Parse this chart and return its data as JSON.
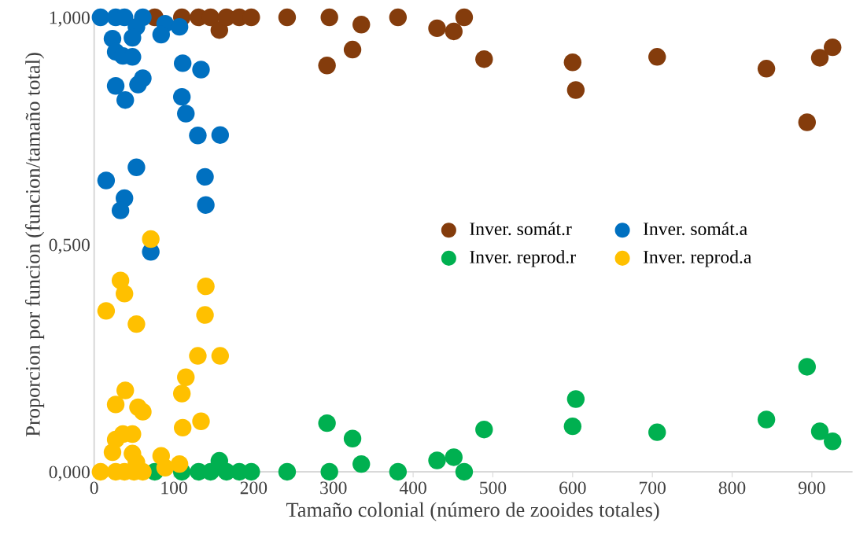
{
  "chart_data": {
    "type": "scatter",
    "xlabel": "Tamaño colonial (número de zooides totales)",
    "ylabel": "Proporcion por funcion (funcion/tamaño total)",
    "xlim": [
      0,
      950
    ],
    "xticks": [
      0,
      100,
      200,
      300,
      400,
      500,
      600,
      700,
      800,
      900
    ],
    "ylim": [
      0,
      1
    ],
    "yticks": [
      {
        "value": 0,
        "label": "0,000"
      },
      {
        "value": 0.5,
        "label": "0,500"
      },
      {
        "value": 1,
        "label": "1,000"
      }
    ],
    "grid": false,
    "legend": "center right",
    "marker": "circle",
    "series": [
      {
        "name": "Inver. somát.r",
        "color": "#843c0c",
        "x": [
          76,
          110,
          131,
          146,
          157,
          166,
          182,
          197,
          242,
          292,
          295,
          324,
          335,
          381,
          430,
          451,
          464,
          489,
          600,
          604,
          706,
          843,
          894,
          910,
          926
        ],
        "values": [
          1.0,
          1.0,
          1.0,
          1.0,
          0.972,
          1.0,
          1.0,
          1.0,
          1.0,
          0.894,
          1.0,
          0.929,
          0.984,
          1.0,
          0.976,
          0.969,
          1.0,
          0.908,
          0.901,
          0.84,
          0.913,
          0.887,
          0.769,
          0.911,
          0.934
        ]
      },
      {
        "name": "Inver. somát.a",
        "color": "#0070c0",
        "x": [
          8,
          27,
          38,
          50,
          61,
          53,
          89,
          107,
          84,
          23,
          48,
          27,
          36,
          48,
          111,
          134,
          27,
          61,
          55,
          39,
          110,
          115,
          130,
          158,
          53,
          15,
          139,
          38,
          33,
          140,
          71
        ],
        "values": [
          1.0,
          1.0,
          1.0,
          null,
          1.0,
          0.979,
          0.986,
          0.979,
          0.962,
          0.953,
          0.955,
          0.924,
          0.915,
          0.913,
          0.899,
          0.885,
          0.849,
          0.866,
          0.852,
          0.818,
          0.825,
          0.788,
          0.74,
          0.741,
          0.67,
          0.641,
          0.649,
          0.602,
          0.575,
          0.587,
          0.484
        ]
      },
      {
        "name": "Inver. reprod.r",
        "color": "#00b050",
        "x": [
          76,
          110,
          131,
          146,
          157,
          166,
          182,
          197,
          242,
          292,
          295,
          324,
          335,
          381,
          430,
          451,
          464,
          489,
          600,
          604,
          706,
          843,
          894,
          910,
          926
        ],
        "values": [
          0.0,
          0.0,
          0.0,
          0.0,
          0.024,
          0.0,
          0.0,
          0.0,
          0.0,
          0.107,
          0.0,
          0.073,
          0.017,
          0.0,
          0.025,
          0.032,
          0.0,
          0.093,
          0.1,
          0.16,
          0.087,
          0.115,
          0.231,
          0.089,
          0.067
        ]
      },
      {
        "name": "Inver. reprod.a",
        "color": "#ffc000",
        "x": [
          8,
          27,
          38,
          50,
          61,
          53,
          89,
          107,
          84,
          23,
          48,
          27,
          36,
          48,
          111,
          134,
          27,
          61,
          55,
          39,
          110,
          115,
          130,
          158,
          53,
          15,
          139,
          38,
          33,
          140,
          71
        ],
        "values": [
          0.0,
          0.0,
          0.0,
          0.0,
          0.0,
          0.021,
          0.009,
          0.017,
          0.035,
          0.043,
          0.04,
          0.071,
          0.083,
          0.083,
          0.097,
          0.111,
          0.148,
          0.132,
          0.142,
          0.179,
          0.172,
          0.208,
          0.255,
          0.255,
          0.325,
          0.354,
          0.345,
          0.392,
          0.421,
          0.408,
          0.512
        ]
      }
    ]
  }
}
